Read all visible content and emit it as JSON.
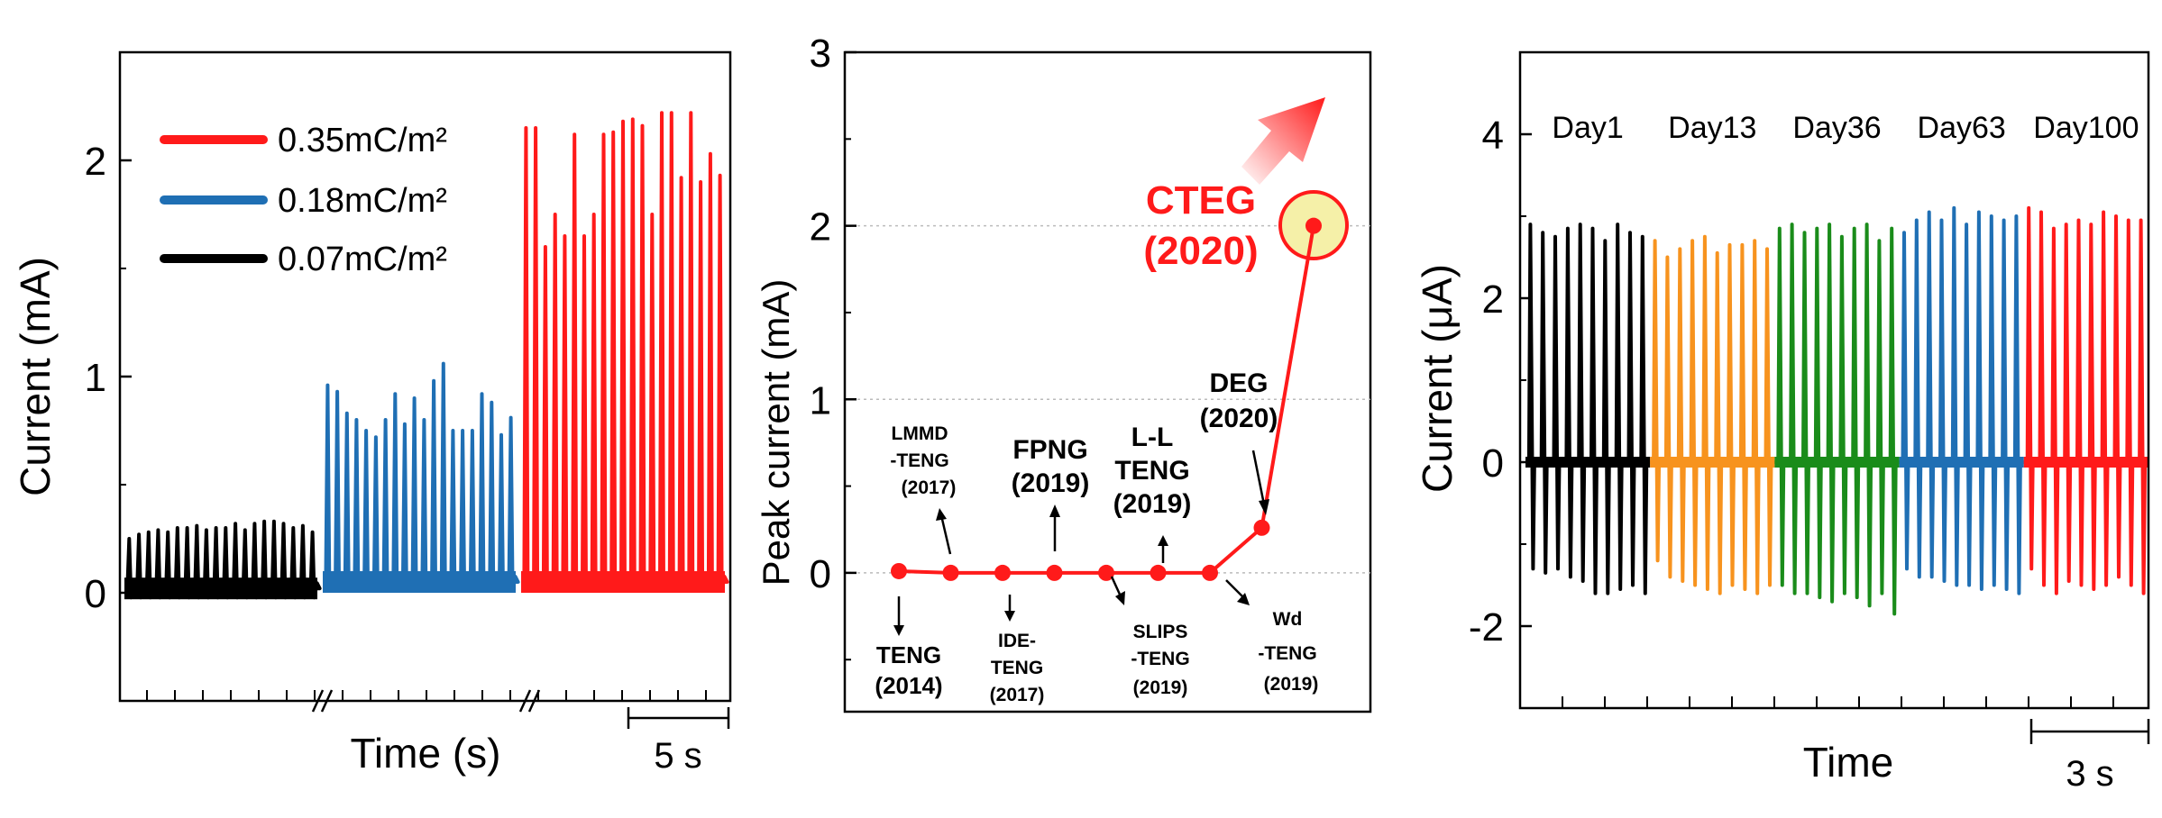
{
  "chart_data": [
    {
      "type": "line",
      "xlabel": "Time (s)",
      "ylabel": "Current (mA)",
      "ylim": [
        -0.5,
        2.5
      ],
      "yticks": [
        "0",
        "1",
        "2"
      ],
      "scale_bar": "5 s",
      "axis_break_symbol": "//",
      "legend_position": "top-left",
      "series": [
        {
          "name": "0.07mC/m²",
          "color": "#000000",
          "peak_values": [
            0.25,
            0.27,
            0.28,
            0.29,
            0.28,
            0.3,
            0.3,
            0.31,
            0.29,
            0.3,
            0.3,
            0.32,
            0.29,
            0.32,
            0.33,
            0.33,
            0.32,
            0.3,
            0.31,
            0.28
          ],
          "baseline": 0.02
        },
        {
          "name": "0.18mC/m²",
          "color": "#1f6fb4",
          "peak_values": [
            0.96,
            0.93,
            0.83,
            0.8,
            0.75,
            0.72,
            0.8,
            0.92,
            0.78,
            0.9,
            0.8,
            0.98,
            1.06,
            0.75,
            0.75,
            0.75,
            0.92,
            0.88,
            0.73,
            0.81
          ],
          "baseline": 0.05
        },
        {
          "name": "0.35mC/m²",
          "color": "#ff1a1a",
          "peak_values": [
            2.15,
            2.15,
            1.6,
            1.75,
            1.65,
            2.12,
            1.65,
            1.75,
            2.12,
            2.13,
            2.18,
            2.19,
            2.16,
            1.75,
            2.22,
            2.22,
            1.92,
            2.22,
            1.9,
            2.03,
            1.93
          ],
          "baseline": 0.05
        }
      ]
    },
    {
      "type": "line",
      "ylabel": "Peak current (mA)",
      "ylim": [
        -0.8,
        3
      ],
      "yticks": [
        "0",
        "1",
        "2",
        "3"
      ],
      "grid": "horizontal dotted",
      "points": [
        {
          "label": "TENG (2014)",
          "lines": [
            "TENG",
            "(2014)"
          ],
          "x": 1,
          "y": 0.01
        },
        {
          "label": "LMMD -TENG (2017)",
          "lines": [
            "LMMD",
            "-TENG",
            "(2017)"
          ],
          "x": 2,
          "y": 0.0
        },
        {
          "label": "IDE- TENG (2017)",
          "lines": [
            "IDE-",
            "TENG",
            "(2017)"
          ],
          "x": 3,
          "y": 0.0
        },
        {
          "label": "FPNG (2019)",
          "lines": [
            "FPNG",
            "(2019)"
          ],
          "x": 4,
          "y": 0.0
        },
        {
          "label": "SLIPS -TENG (2019)",
          "lines": [
            "SLIPS",
            "-TENG",
            "(2019)"
          ],
          "x": 5,
          "y": 0.0
        },
        {
          "label": "L-L TENG (2019)",
          "lines": [
            "L-L",
            "TENG",
            "(2019)"
          ],
          "x": 6,
          "y": 0.0
        },
        {
          "label": "Wd -TENG (2019)",
          "lines": [
            "Wd",
            "-TENG",
            "(2019)"
          ],
          "x": 7,
          "y": 0.0
        },
        {
          "label": "DEG (2020)",
          "lines": [
            "DEG",
            "(2020)"
          ],
          "x": 8,
          "y": 0.26
        },
        {
          "label": "CTEG (2020)",
          "lines": [
            "CTEG",
            "(2020)"
          ],
          "x": 9,
          "y": 2.0
        }
      ],
      "line_color": "#ff1a1a",
      "highlight_color": "#f5f0a8"
    },
    {
      "type": "line",
      "xlabel": "Time",
      "ylabel": "Current (μA)",
      "ylim": [
        -3,
        5
      ],
      "yticks": [
        "4",
        "2",
        "0",
        "-2"
      ],
      "scale_bar": "3 s",
      "series": [
        {
          "name": "Day1",
          "color": "#000000",
          "amplitude_pos": [
            2.9,
            2.8,
            2.75,
            2.85,
            2.9,
            2.85,
            2.7,
            2.9,
            2.8,
            2.75
          ],
          "amplitude_neg": [
            -1.3,
            -1.35,
            -1.3,
            -1.4,
            -1.45,
            -1.6,
            -1.6,
            -1.55,
            -1.5,
            -1.6
          ]
        },
        {
          "name": "Day13",
          "color": "#f7931e",
          "amplitude_pos": [
            2.7,
            2.5,
            2.6,
            2.7,
            2.75,
            2.55,
            2.65,
            2.65,
            2.7,
            2.6
          ],
          "amplitude_neg": [
            -1.2,
            -1.4,
            -1.45,
            -1.5,
            -1.55,
            -1.6,
            -1.5,
            -1.55,
            -1.6,
            -1.5
          ]
        },
        {
          "name": "Day36",
          "color": "#1a8c1a",
          "amplitude_pos": [
            2.85,
            2.9,
            2.8,
            2.85,
            2.9,
            2.75,
            2.85,
            2.9,
            2.7,
            2.85
          ],
          "amplitude_neg": [
            -1.5,
            -1.6,
            -1.6,
            -1.65,
            -1.7,
            -1.6,
            -1.65,
            -1.75,
            -1.6,
            -1.85
          ]
        },
        {
          "name": "Day63",
          "color": "#1f6fb4",
          "amplitude_pos": [
            2.8,
            2.95,
            3.05,
            2.95,
            3.1,
            2.9,
            3.05,
            3.0,
            2.95,
            3.0
          ],
          "amplitude_neg": [
            -1.3,
            -1.4,
            -1.4,
            -1.45,
            -1.5,
            -1.5,
            -1.55,
            -1.5,
            -1.55,
            -1.6
          ]
        },
        {
          "name": "Day100",
          "color": "#ff1a1a",
          "amplitude_pos": [
            3.1,
            3.05,
            2.85,
            2.9,
            2.95,
            2.9,
            3.05,
            3.0,
            2.95,
            2.95
          ],
          "amplitude_neg": [
            -1.3,
            -1.5,
            -1.6,
            -1.45,
            -1.5,
            -1.55,
            -1.5,
            -1.4,
            -1.5,
            -1.6
          ]
        }
      ]
    }
  ]
}
